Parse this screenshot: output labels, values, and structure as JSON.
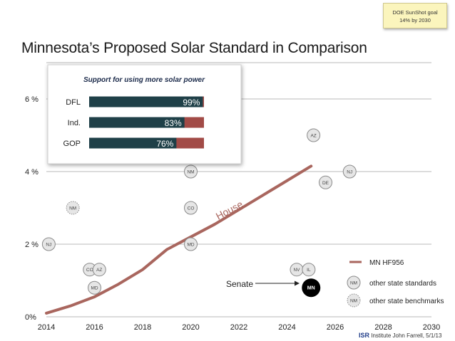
{
  "title": "Minnesota’s Proposed Solar Standard in Comparison",
  "note": {
    "line1": "DOE SunShot goal",
    "line2": "14% by 2030"
  },
  "credit": {
    "org": "ISR",
    "org_suffix": "Institute",
    "author": "John Farrell, 5/1/13"
  },
  "chart_data": {
    "type": "line",
    "xlim": [
      2014,
      2030
    ],
    "ylim": [
      0,
      7
    ],
    "x_ticks": [
      "2014",
      "2016",
      "2018",
      "2020",
      "2022",
      "2024",
      "2026",
      "2028",
      "2030"
    ],
    "y_ticks": [
      {
        "v": 0,
        "label": "0%"
      },
      {
        "v": 2,
        "label": "2 %"
      },
      {
        "v": 4,
        "label": "4 %"
      },
      {
        "v": 6,
        "label": "6 %"
      }
    ],
    "line_color": "#a9665e",
    "series": [
      {
        "name": "MN HF956",
        "x": [
          2014,
          2015,
          2016,
          2017,
          2018,
          2019,
          2020,
          2021,
          2022,
          2023,
          2024,
          2025
        ],
        "y": [
          0.1,
          0.3,
          0.55,
          0.9,
          1.3,
          1.85,
          2.2,
          2.55,
          2.95,
          3.35,
          3.75,
          4.15
        ]
      }
    ],
    "annotations": {
      "house": "House",
      "senate": "Senate"
    },
    "standards": [
      {
        "label": "NJ",
        "x": 2014.1,
        "y": 2.0
      },
      {
        "label": "CO",
        "x": 2015.8,
        "y": 1.3
      },
      {
        "label": "AZ",
        "x": 2016.2,
        "y": 1.3
      },
      {
        "label": "MD",
        "x": 2016.0,
        "y": 0.8
      },
      {
        "label": "MD",
        "x": 2020.0,
        "y": 2.0
      },
      {
        "label": "CO",
        "x": 2020.0,
        "y": 3.0
      },
      {
        "label": "NM",
        "x": 2020.0,
        "y": 4.0
      },
      {
        "label": "NV",
        "x": 2024.4,
        "y": 1.3
      },
      {
        "label": "IL",
        "x": 2024.9,
        "y": 1.3
      },
      {
        "label": "DE",
        "x": 2025.6,
        "y": 3.7
      },
      {
        "label": "NJ",
        "x": 2026.6,
        "y": 4.0
      },
      {
        "label": "AZ",
        "x": 2025.1,
        "y": 5.0
      }
    ],
    "benchmarks": [
      {
        "label": "NM",
        "x": 2015.1,
        "y": 3.0
      }
    ],
    "mn_marker": {
      "label": "MN",
      "x": 2025.0,
      "y": 0.8
    },
    "legend": [
      {
        "kind": "line",
        "label": "MN HF956"
      },
      {
        "kind": "standard",
        "symbol": "NM",
        "label": "other state standards"
      },
      {
        "kind": "benchmark",
        "symbol": "NM",
        "label": "other state benchmarks"
      }
    ],
    "legend_position": "bottom-right",
    "inset": {
      "type": "bar",
      "title": "Support for using more solar power",
      "categories": [
        "DFL",
        "Ind.",
        "GOP"
      ],
      "values": [
        99,
        83,
        76
      ],
      "value_labels": [
        "99%",
        "83%",
        "76%"
      ],
      "support_color": "#1f4048",
      "remainder_color": "#a24b47"
    }
  }
}
